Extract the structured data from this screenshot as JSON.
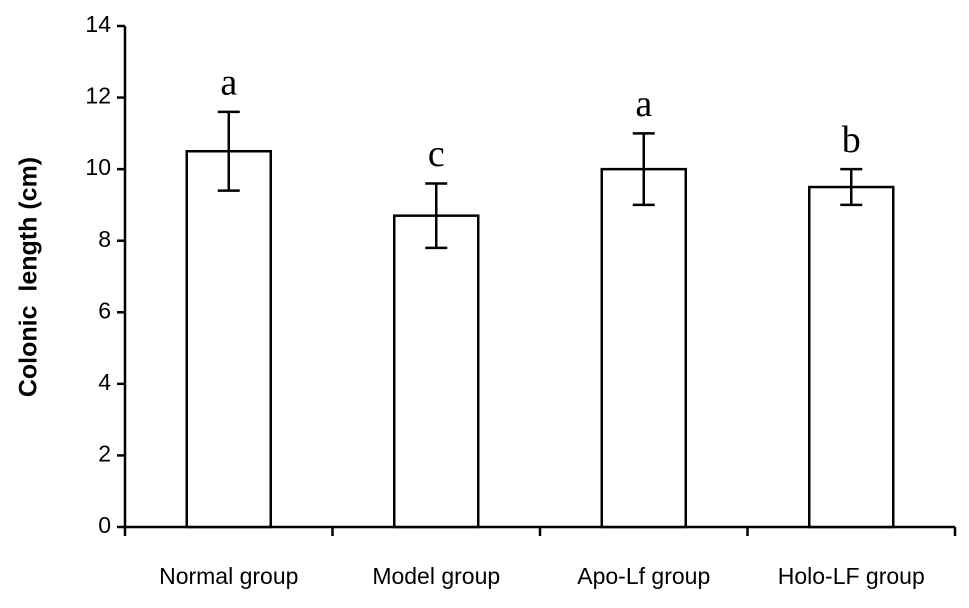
{
  "chart_data": {
    "type": "bar",
    "ylabel": "Colonic  length (cm)",
    "categories": [
      "Normal group",
      "Model group",
      "Apo-Lf group",
      "Holo-LF group"
    ],
    "values": [
      10.5,
      8.7,
      10.0,
      9.5
    ],
    "errors": [
      1.1,
      0.9,
      1.0,
      0.5
    ],
    "letters": [
      "a",
      "c",
      "a",
      "b"
    ],
    "color": "#ffffff",
    "ylim": [
      0,
      14
    ],
    "yticks": [
      0,
      2,
      4,
      6,
      8,
      10,
      12,
      14
    ],
    "grid": false
  }
}
